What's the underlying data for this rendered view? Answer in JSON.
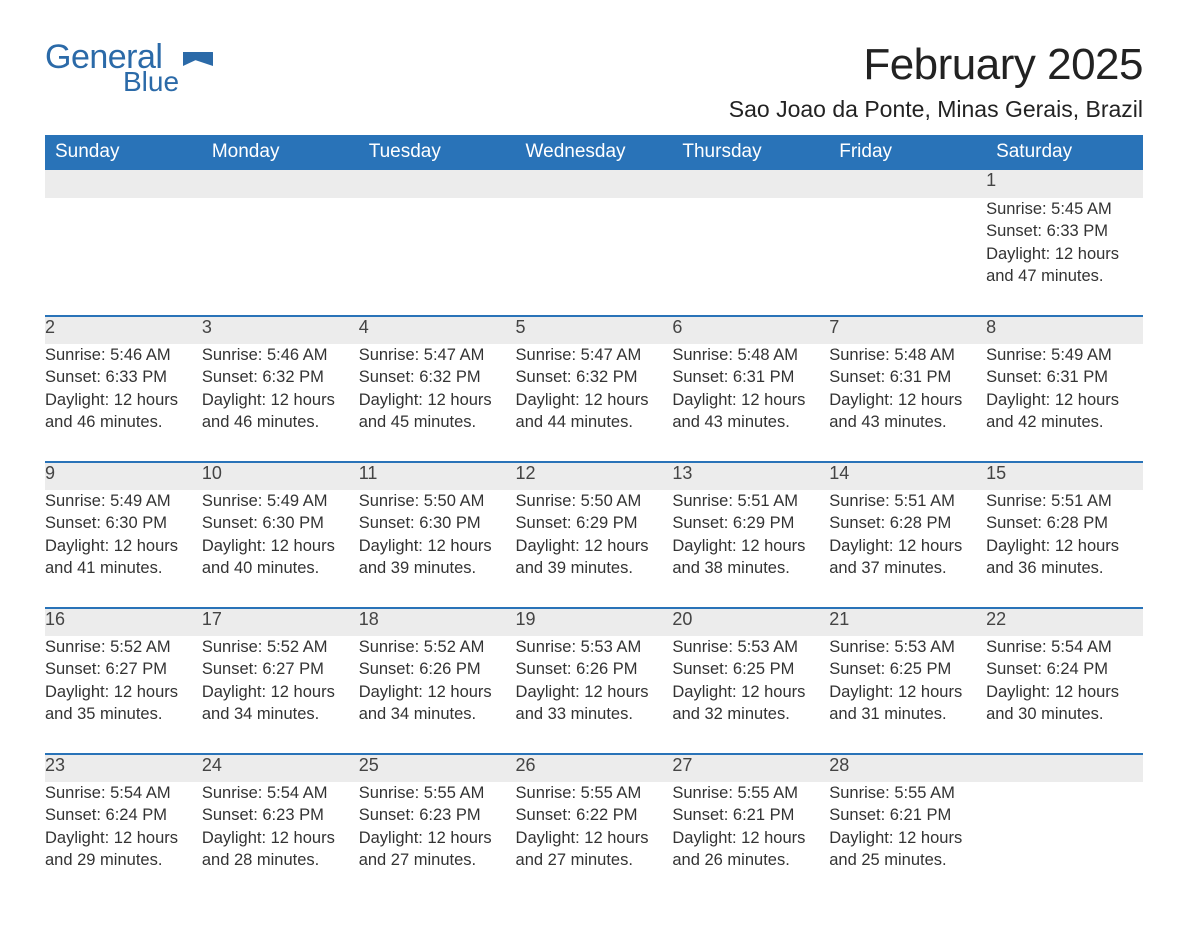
{
  "brand": {
    "word1": "General",
    "word2": "Blue",
    "color": "#2b6aa8"
  },
  "title": "February 2025",
  "location": "Sao Joao da Ponte, Minas Gerais, Brazil",
  "theme": {
    "header_bg": "#2973b8",
    "header_text": "#ffffff",
    "daynum_bg": "#ececec",
    "row_divider": "#2973b8",
    "body_text": "#333333",
    "page_bg": "#ffffff"
  },
  "typography": {
    "title_fontsize_pt": 33,
    "location_fontsize_pt": 17,
    "dayheader_fontsize_pt": 14,
    "daynum_fontsize_pt": 14,
    "detail_fontsize_pt": 12
  },
  "day_headers": [
    "Sunday",
    "Monday",
    "Tuesday",
    "Wednesday",
    "Thursday",
    "Friday",
    "Saturday"
  ],
  "weeks": [
    [
      null,
      null,
      null,
      null,
      null,
      null,
      {
        "n": "1",
        "sunrise": "5:45 AM",
        "sunset": "6:33 PM",
        "daylight": "12 hours and 47 minutes."
      }
    ],
    [
      {
        "n": "2",
        "sunrise": "5:46 AM",
        "sunset": "6:33 PM",
        "daylight": "12 hours and 46 minutes."
      },
      {
        "n": "3",
        "sunrise": "5:46 AM",
        "sunset": "6:32 PM",
        "daylight": "12 hours and 46 minutes."
      },
      {
        "n": "4",
        "sunrise": "5:47 AM",
        "sunset": "6:32 PM",
        "daylight": "12 hours and 45 minutes."
      },
      {
        "n": "5",
        "sunrise": "5:47 AM",
        "sunset": "6:32 PM",
        "daylight": "12 hours and 44 minutes."
      },
      {
        "n": "6",
        "sunrise": "5:48 AM",
        "sunset": "6:31 PM",
        "daylight": "12 hours and 43 minutes."
      },
      {
        "n": "7",
        "sunrise": "5:48 AM",
        "sunset": "6:31 PM",
        "daylight": "12 hours and 43 minutes."
      },
      {
        "n": "8",
        "sunrise": "5:49 AM",
        "sunset": "6:31 PM",
        "daylight": "12 hours and 42 minutes."
      }
    ],
    [
      {
        "n": "9",
        "sunrise": "5:49 AM",
        "sunset": "6:30 PM",
        "daylight": "12 hours and 41 minutes."
      },
      {
        "n": "10",
        "sunrise": "5:49 AM",
        "sunset": "6:30 PM",
        "daylight": "12 hours and 40 minutes."
      },
      {
        "n": "11",
        "sunrise": "5:50 AM",
        "sunset": "6:30 PM",
        "daylight": "12 hours and 39 minutes."
      },
      {
        "n": "12",
        "sunrise": "5:50 AM",
        "sunset": "6:29 PM",
        "daylight": "12 hours and 39 minutes."
      },
      {
        "n": "13",
        "sunrise": "5:51 AM",
        "sunset": "6:29 PM",
        "daylight": "12 hours and 38 minutes."
      },
      {
        "n": "14",
        "sunrise": "5:51 AM",
        "sunset": "6:28 PM",
        "daylight": "12 hours and 37 minutes."
      },
      {
        "n": "15",
        "sunrise": "5:51 AM",
        "sunset": "6:28 PM",
        "daylight": "12 hours and 36 minutes."
      }
    ],
    [
      {
        "n": "16",
        "sunrise": "5:52 AM",
        "sunset": "6:27 PM",
        "daylight": "12 hours and 35 minutes."
      },
      {
        "n": "17",
        "sunrise": "5:52 AM",
        "sunset": "6:27 PM",
        "daylight": "12 hours and 34 minutes."
      },
      {
        "n": "18",
        "sunrise": "5:52 AM",
        "sunset": "6:26 PM",
        "daylight": "12 hours and 34 minutes."
      },
      {
        "n": "19",
        "sunrise": "5:53 AM",
        "sunset": "6:26 PM",
        "daylight": "12 hours and 33 minutes."
      },
      {
        "n": "20",
        "sunrise": "5:53 AM",
        "sunset": "6:25 PM",
        "daylight": "12 hours and 32 minutes."
      },
      {
        "n": "21",
        "sunrise": "5:53 AM",
        "sunset": "6:25 PM",
        "daylight": "12 hours and 31 minutes."
      },
      {
        "n": "22",
        "sunrise": "5:54 AM",
        "sunset": "6:24 PM",
        "daylight": "12 hours and 30 minutes."
      }
    ],
    [
      {
        "n": "23",
        "sunrise": "5:54 AM",
        "sunset": "6:24 PM",
        "daylight": "12 hours and 29 minutes."
      },
      {
        "n": "24",
        "sunrise": "5:54 AM",
        "sunset": "6:23 PM",
        "daylight": "12 hours and 28 minutes."
      },
      {
        "n": "25",
        "sunrise": "5:55 AM",
        "sunset": "6:23 PM",
        "daylight": "12 hours and 27 minutes."
      },
      {
        "n": "26",
        "sunrise": "5:55 AM",
        "sunset": "6:22 PM",
        "daylight": "12 hours and 27 minutes."
      },
      {
        "n": "27",
        "sunrise": "5:55 AM",
        "sunset": "6:21 PM",
        "daylight": "12 hours and 26 minutes."
      },
      {
        "n": "28",
        "sunrise": "5:55 AM",
        "sunset": "6:21 PM",
        "daylight": "12 hours and 25 minutes."
      },
      null
    ]
  ],
  "labels": {
    "sunrise": "Sunrise: ",
    "sunset": "Sunset: ",
    "daylight": "Daylight: "
  }
}
